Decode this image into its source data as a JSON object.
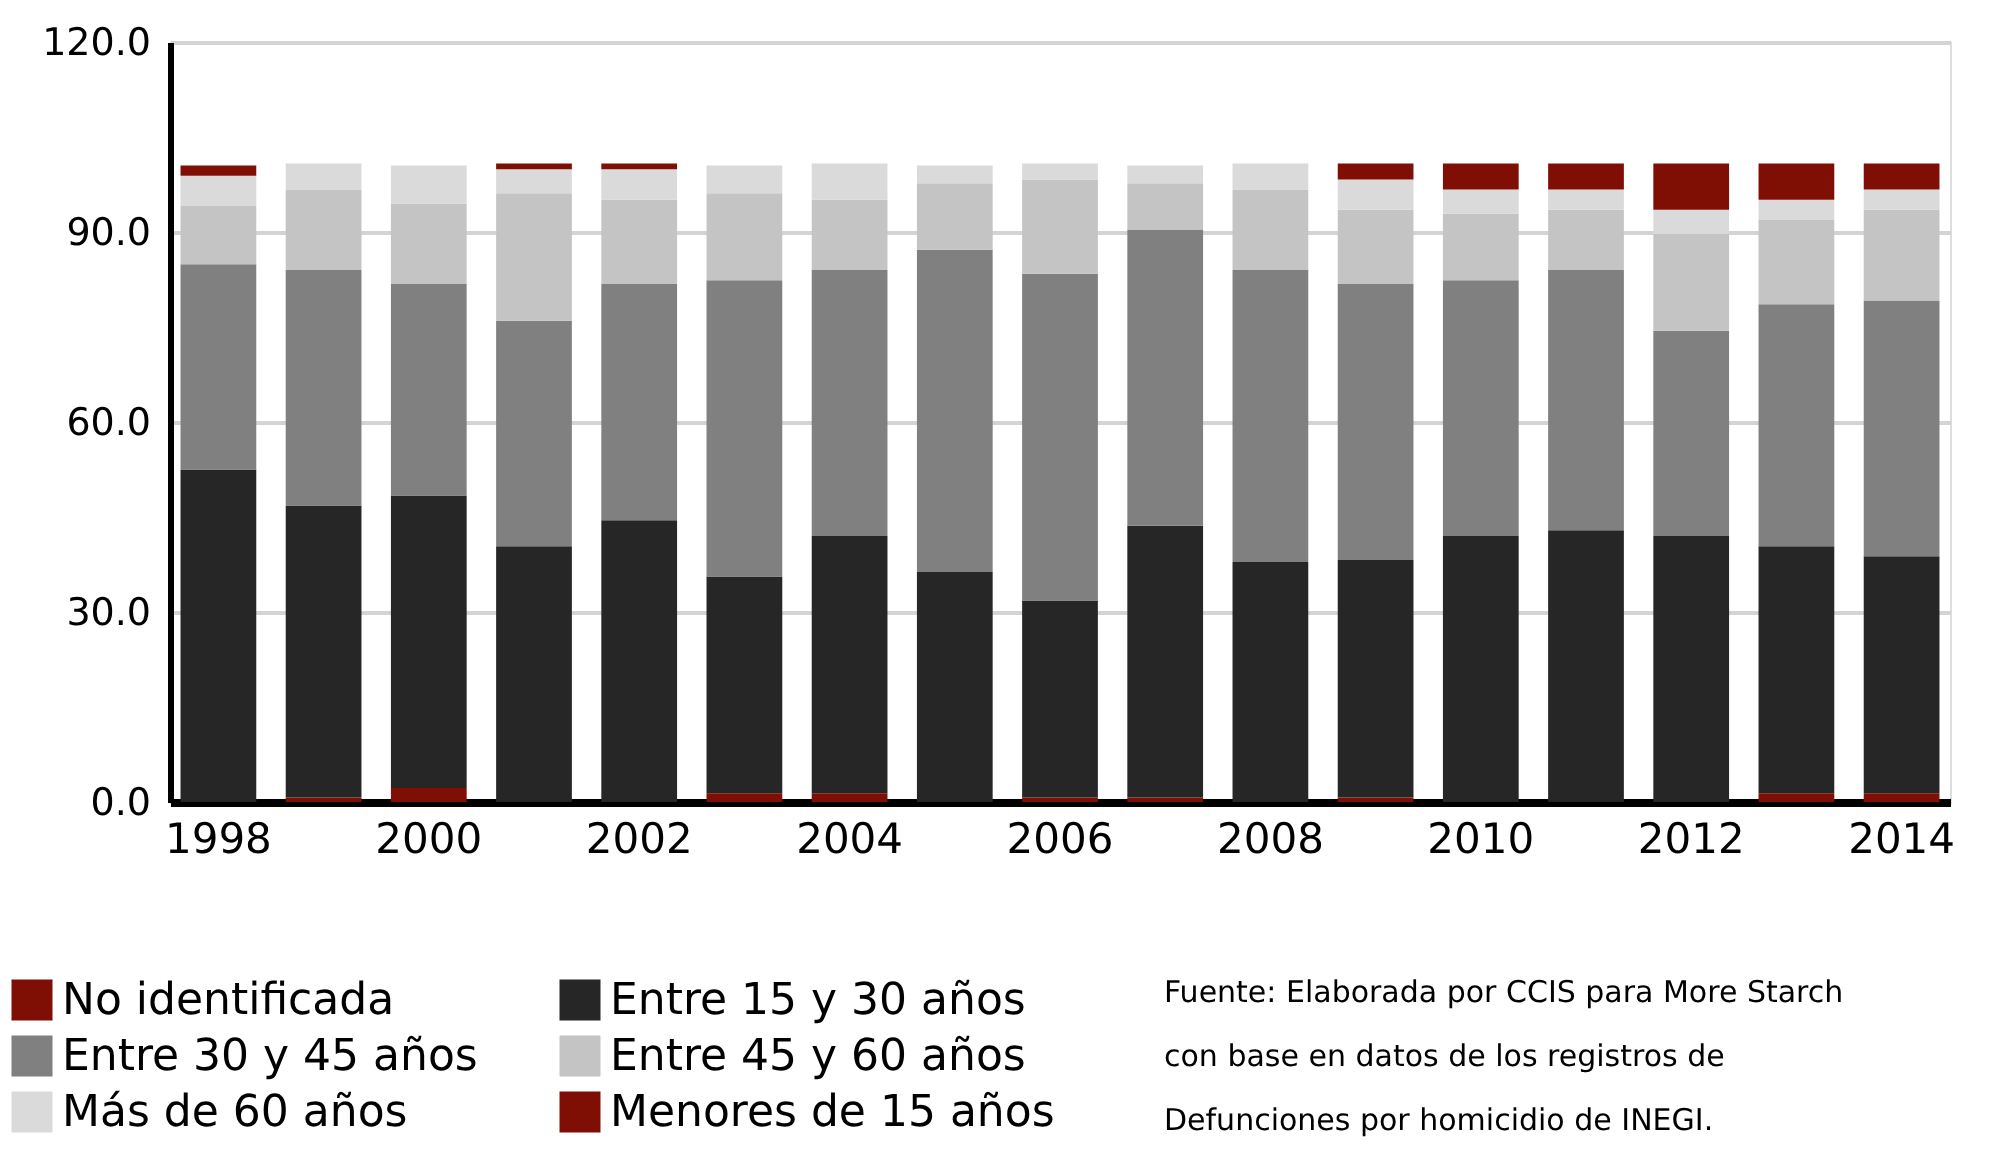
{
  "chart_data": {
    "type": "bar",
    "stacked": true,
    "categories": [
      "1998",
      null,
      "2000",
      null,
      "2002",
      null,
      "2004",
      null,
      "2006",
      null,
      "2008",
      null,
      "2010",
      null,
      "2012",
      null,
      "2014"
    ],
    "series": [
      {
        "name": "Menores de 15 años",
        "color": "#7f0f05",
        "values": [
          0,
          0.7,
          2.2,
          0,
          0,
          1.4,
          1.4,
          0,
          0.7,
          0.7,
          0,
          0.7,
          0,
          0,
          0,
          1.4,
          1.4
        ]
      },
      {
        "name": "Entre 15 y 30 años",
        "color": "#262626",
        "values": [
          52.5,
          46.1,
          46.2,
          40.4,
          44.5,
          34.2,
          40.6,
          36.3,
          31.1,
          42.9,
          37.9,
          37.5,
          42.0,
          42.9,
          42.0,
          39.0,
          37.4
        ]
      },
      {
        "name": "Entre 30 y 45 años",
        "color": "#808080",
        "values": [
          32.4,
          37.2,
          33.4,
          35.6,
          37.3,
          46.8,
          42.0,
          50.9,
          51.6,
          46.8,
          46.1,
          43.6,
          40.4,
          41.1,
          32.4,
          38.2,
          40.4
        ]
      },
      {
        "name": "Entre 45 y 60 años",
        "color": "#c4c4c4",
        "values": [
          9.3,
          12.7,
          12.7,
          20.1,
          13.3,
          13.7,
          11.1,
          10.5,
          14.9,
          7.3,
          12.7,
          11.7,
          10.5,
          9.5,
          15.3,
          13.3,
          14.3
        ]
      },
      {
        "name": "Más de 60 años",
        "color": "#dadada",
        "values": [
          4.7,
          4.1,
          6.0,
          3.8,
          4.8,
          4.4,
          5.7,
          2.8,
          2.5,
          2.8,
          4.1,
          4.8,
          3.8,
          3.2,
          3.8,
          3.2,
          3.2
        ]
      },
      {
        "name": "No identificada",
        "color": "#7f0f05",
        "values": [
          1.6,
          0,
          0,
          0.9,
          0.9,
          0,
          0,
          0,
          0,
          0,
          0,
          2.5,
          4.1,
          4.1,
          7.3,
          5.7,
          4.1
        ]
      }
    ],
    "ylim": [
      0,
      120
    ],
    "yticks": [
      {
        "value": 0,
        "label": "0.0"
      },
      {
        "value": 30,
        "label": "30.0"
      },
      {
        "value": 60,
        "label": "60.0"
      },
      {
        "value": 90,
        "label": "90.0"
      },
      {
        "value": 120,
        "label": "120.0"
      }
    ],
    "grid": "y",
    "legend": "bottom",
    "annotations": [
      "Fuente: Elaborada por CCIS para More Starch\ncon base en datos de los registros de\nDefunciones por homicidio de  INEGI."
    ]
  }
}
